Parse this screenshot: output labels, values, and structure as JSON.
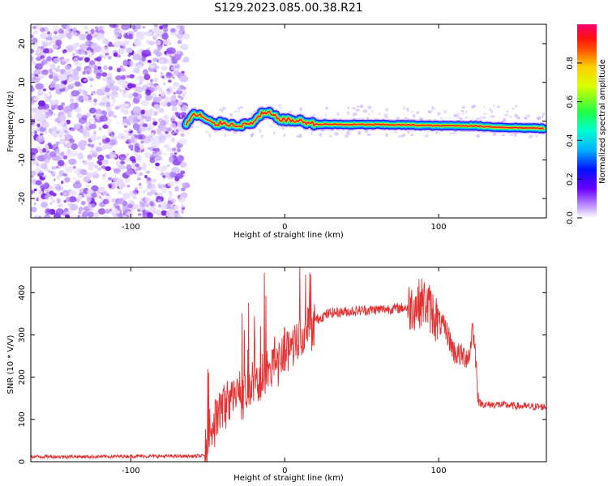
{
  "title": "S129.2023.085.00.38.R21",
  "colors": {
    "snr_line": "#e53030",
    "noise_speckle": "#8a2be2",
    "spectrum_core": "#ff2020",
    "spectrum_halo": "#0010ff"
  },
  "chart_data": [
    {
      "type": "heatmap",
      "xlabel": "Height of straight line (km)",
      "ylabel": "Frequency (Hz)",
      "xlim": [
        -165,
        170
      ],
      "ylim": [
        -25,
        25
      ],
      "x_ticks": [
        -100,
        0,
        100
      ],
      "y_ticks": [
        -20,
        -10,
        0,
        10,
        20
      ],
      "grid": false,
      "noise_region_x": [
        -165,
        -64
      ],
      "ridge": {
        "x": [
          -64,
          -60,
          -55,
          -50,
          -45,
          -40,
          -35,
          -30,
          -25,
          -20,
          -15,
          -10,
          -5,
          0,
          10,
          20,
          40,
          60,
          80,
          100,
          120,
          140,
          160,
          168
        ],
        "freq": [
          -1.0,
          1.5,
          1.5,
          0.0,
          -1.0,
          -0.3,
          -1.0,
          -1.0,
          -1.0,
          -0.2,
          1.8,
          2.0,
          0.8,
          0.3,
          0.0,
          -0.8,
          -0.9,
          -0.9,
          -1.0,
          -1.2,
          -1.2,
          -1.6,
          -1.8,
          -1.9
        ]
      },
      "colorbar": {
        "label": "Normalized spectral amplitude",
        "range": [
          0.0,
          1.0
        ],
        "ticks": [
          0.0,
          0.2,
          0.4,
          0.6,
          0.8
        ],
        "tick_labels": [
          "0.0",
          "0.2",
          "0.4",
          "0.6",
          "0.8"
        ]
      }
    },
    {
      "type": "line",
      "xlabel": "Height of straight line (km)",
      "ylabel": "SNR (10 * V/V)",
      "xlim": [
        -165,
        170
      ],
      "ylim": [
        0,
        460
      ],
      "x_ticks": [
        -100,
        0,
        100
      ],
      "y_ticks": [
        0,
        100,
        200,
        300,
        400
      ],
      "grid": false,
      "series": [
        {
          "x": [
            -165,
            -140,
            -120,
            -100,
            -80,
            -60,
            -52,
            -50,
            -45,
            -40,
            -35,
            -30,
            -25,
            -20,
            -15,
            -10,
            -5,
            0,
            5,
            10,
            15,
            20,
            25,
            30,
            40,
            50,
            60,
            70,
            80,
            85,
            90,
            95,
            100,
            105,
            110,
            115,
            120,
            122,
            124,
            126,
            130,
            140,
            150,
            160,
            170
          ],
          "y": [
            12,
            12,
            12,
            13,
            13,
            13,
            14,
            60,
            100,
            130,
            150,
            170,
            160,
            180,
            200,
            220,
            240,
            260,
            280,
            300,
            320,
            335,
            345,
            352,
            355,
            358,
            360,
            362,
            365,
            370,
            380,
            360,
            330,
            310,
            260,
            250,
            250,
            320,
            250,
            140,
            135,
            135,
            132,
            130,
            130
          ]
        }
      ]
    }
  ]
}
